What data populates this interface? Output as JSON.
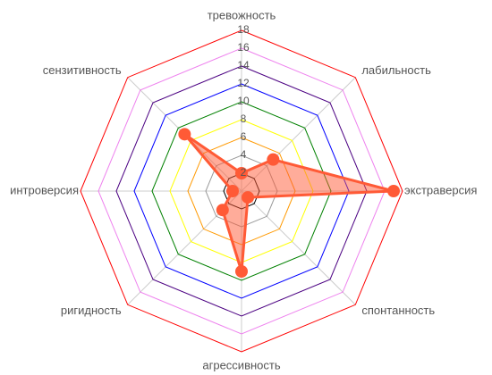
{
  "chart_data": {
    "type": "radar",
    "categories": [
      "тревожность",
      "лабильность",
      "экстраверсия",
      "спонтанность",
      "агрессивность",
      "ригидность",
      "интроверсия",
      "сензитивность"
    ],
    "series": [
      {
        "color": "#ff5a36",
        "values": [
          2,
          5,
          17,
          1,
          9,
          3,
          1,
          9
        ]
      }
    ],
    "rlim": [
      0,
      18
    ],
    "rticks": [
      2,
      4,
      6,
      8,
      10,
      12,
      14,
      16,
      18
    ],
    "ring_colors": [
      "#000000",
      "#999999",
      "#ff9900",
      "#ffff00",
      "#008000",
      "#0000ff",
      "#4b0082",
      "#ee82ee",
      "#ff0000"
    ]
  }
}
